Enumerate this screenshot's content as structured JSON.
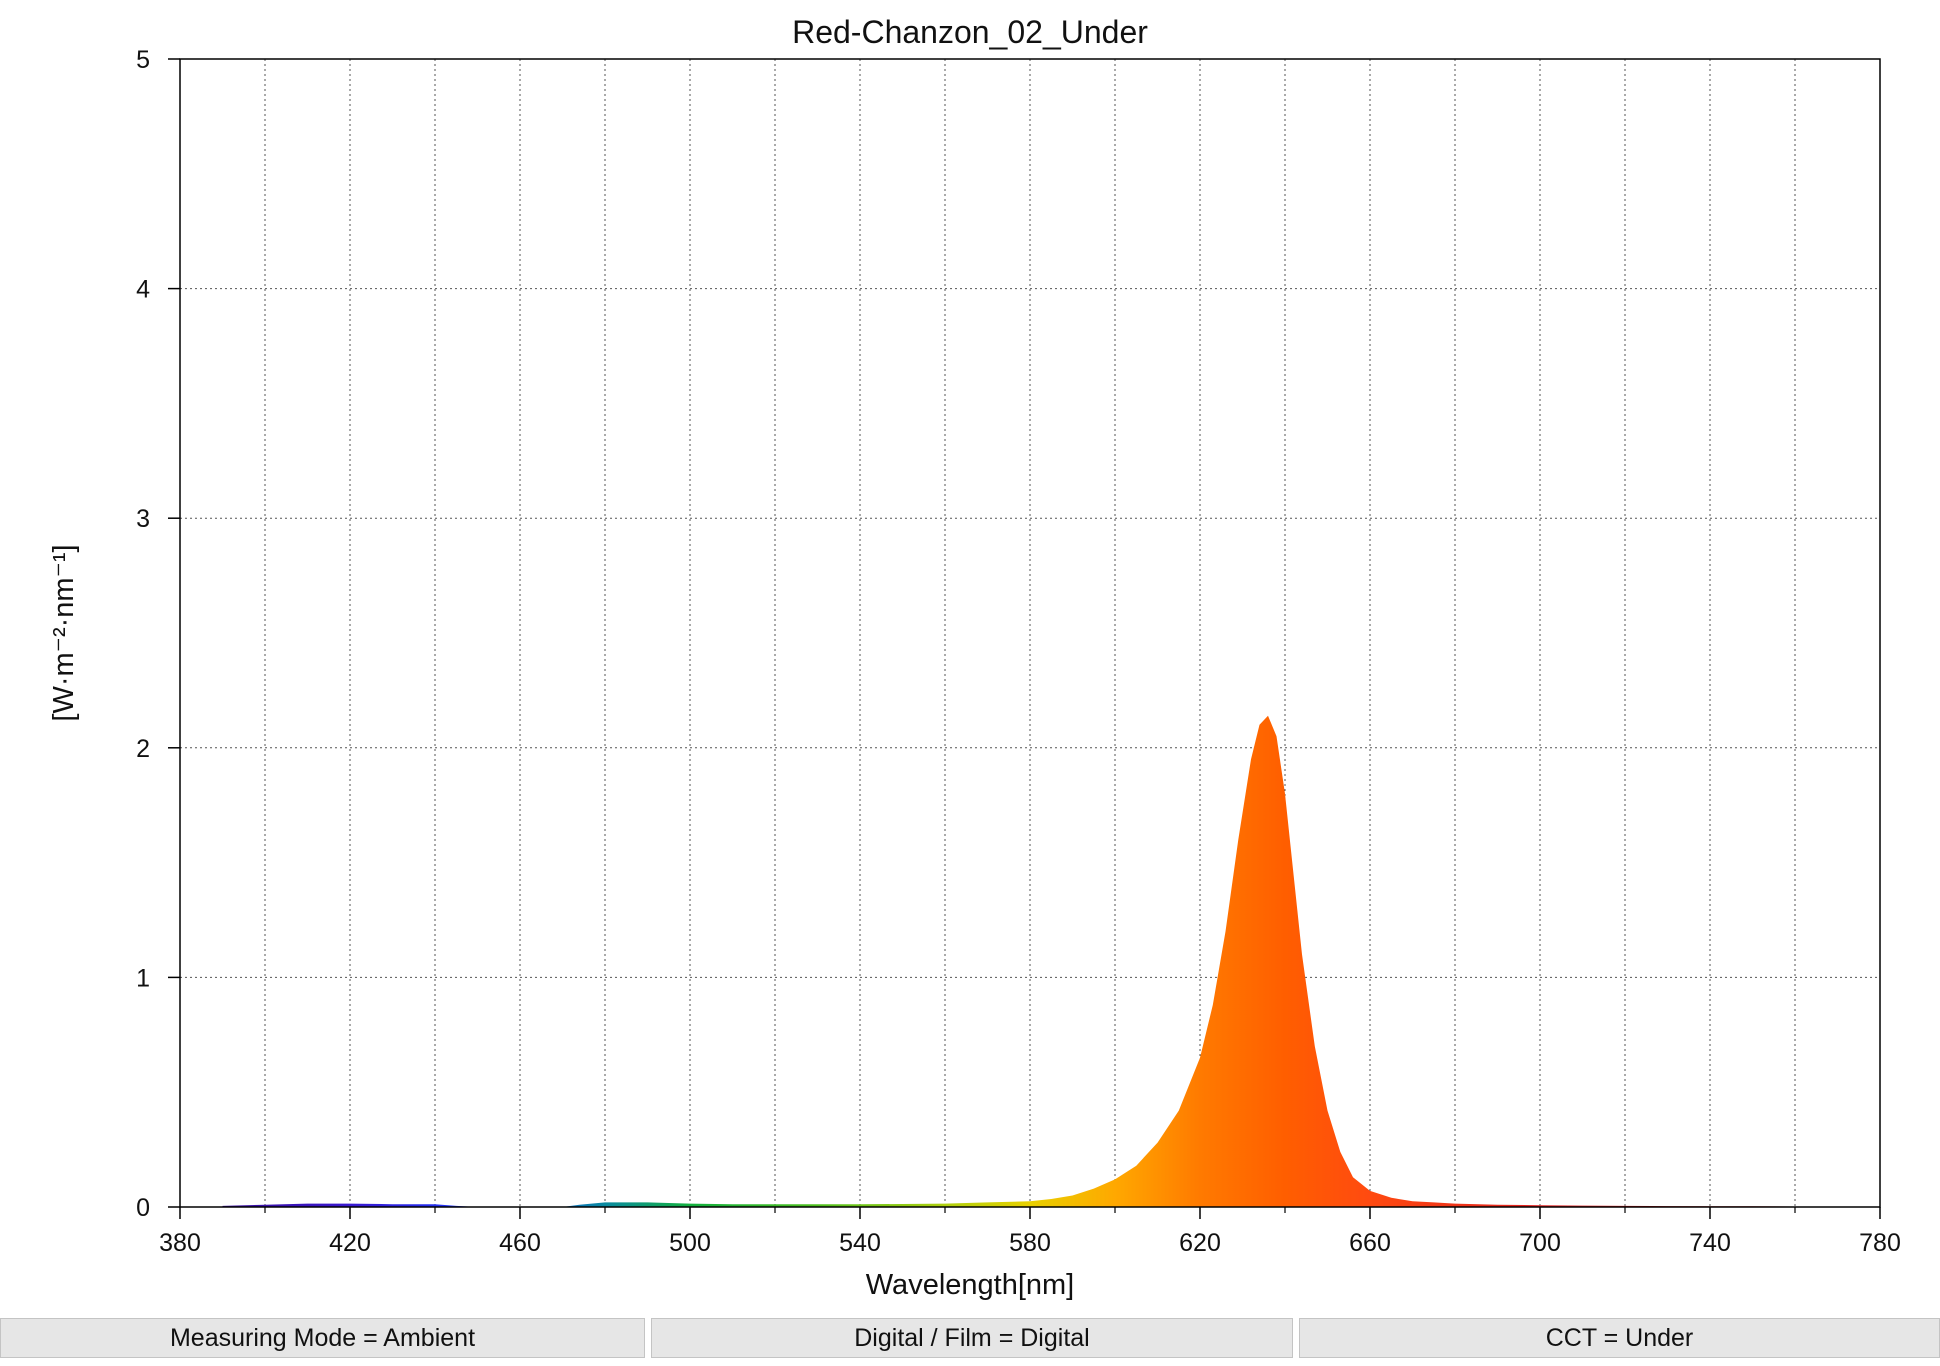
{
  "chart_data": {
    "type": "area",
    "title": "Red-Chanzon_02_Under",
    "xlabel": "Wavelength[nm]",
    "ylabel": "[W·m⁻²·nm⁻¹]",
    "xlim": [
      380,
      780
    ],
    "ylim": [
      0,
      5
    ],
    "xticks": [
      380,
      420,
      460,
      500,
      540,
      580,
      620,
      660,
      700,
      740,
      780
    ],
    "yticks": [
      0,
      1,
      2,
      3,
      4,
      5
    ],
    "grid": true,
    "fill": "visible-spectrum-gradient",
    "series": [
      {
        "x": [
          390,
          400,
          410,
          420,
          430,
          440,
          445,
          450,
          460,
          470,
          474,
          480,
          490,
          500,
          510,
          520,
          530,
          540,
          550,
          560,
          570,
          580,
          585,
          590,
          595,
          600,
          605,
          610,
          615,
          620,
          623,
          626,
          629,
          632,
          634,
          636,
          638,
          640,
          642,
          644,
          647,
          650,
          653,
          656,
          660,
          665,
          670,
          675,
          680,
          690,
          700,
          710,
          720,
          730,
          740,
          750,
          760,
          770,
          780
        ],
        "y": [
          0.005,
          0.01,
          0.015,
          0.015,
          0.012,
          0.012,
          0.005,
          0.0,
          0.0,
          0.0,
          0.01,
          0.02,
          0.02,
          0.015,
          0.012,
          0.012,
          0.012,
          0.012,
          0.013,
          0.015,
          0.02,
          0.025,
          0.035,
          0.05,
          0.08,
          0.12,
          0.18,
          0.28,
          0.42,
          0.65,
          0.88,
          1.2,
          1.6,
          1.95,
          2.1,
          2.14,
          2.05,
          1.8,
          1.45,
          1.1,
          0.7,
          0.42,
          0.24,
          0.13,
          0.07,
          0.04,
          0.025,
          0.02,
          0.015,
          0.01,
          0.008,
          0.006,
          0.005,
          0.004,
          0.003,
          0.003,
          0.002,
          0.001,
          0.0
        ]
      }
    ]
  },
  "status_bar": {
    "measuring_mode": "Measuring Mode = Ambient",
    "digital_film": "Digital / Film = Digital",
    "cct": "CCT = Under"
  }
}
